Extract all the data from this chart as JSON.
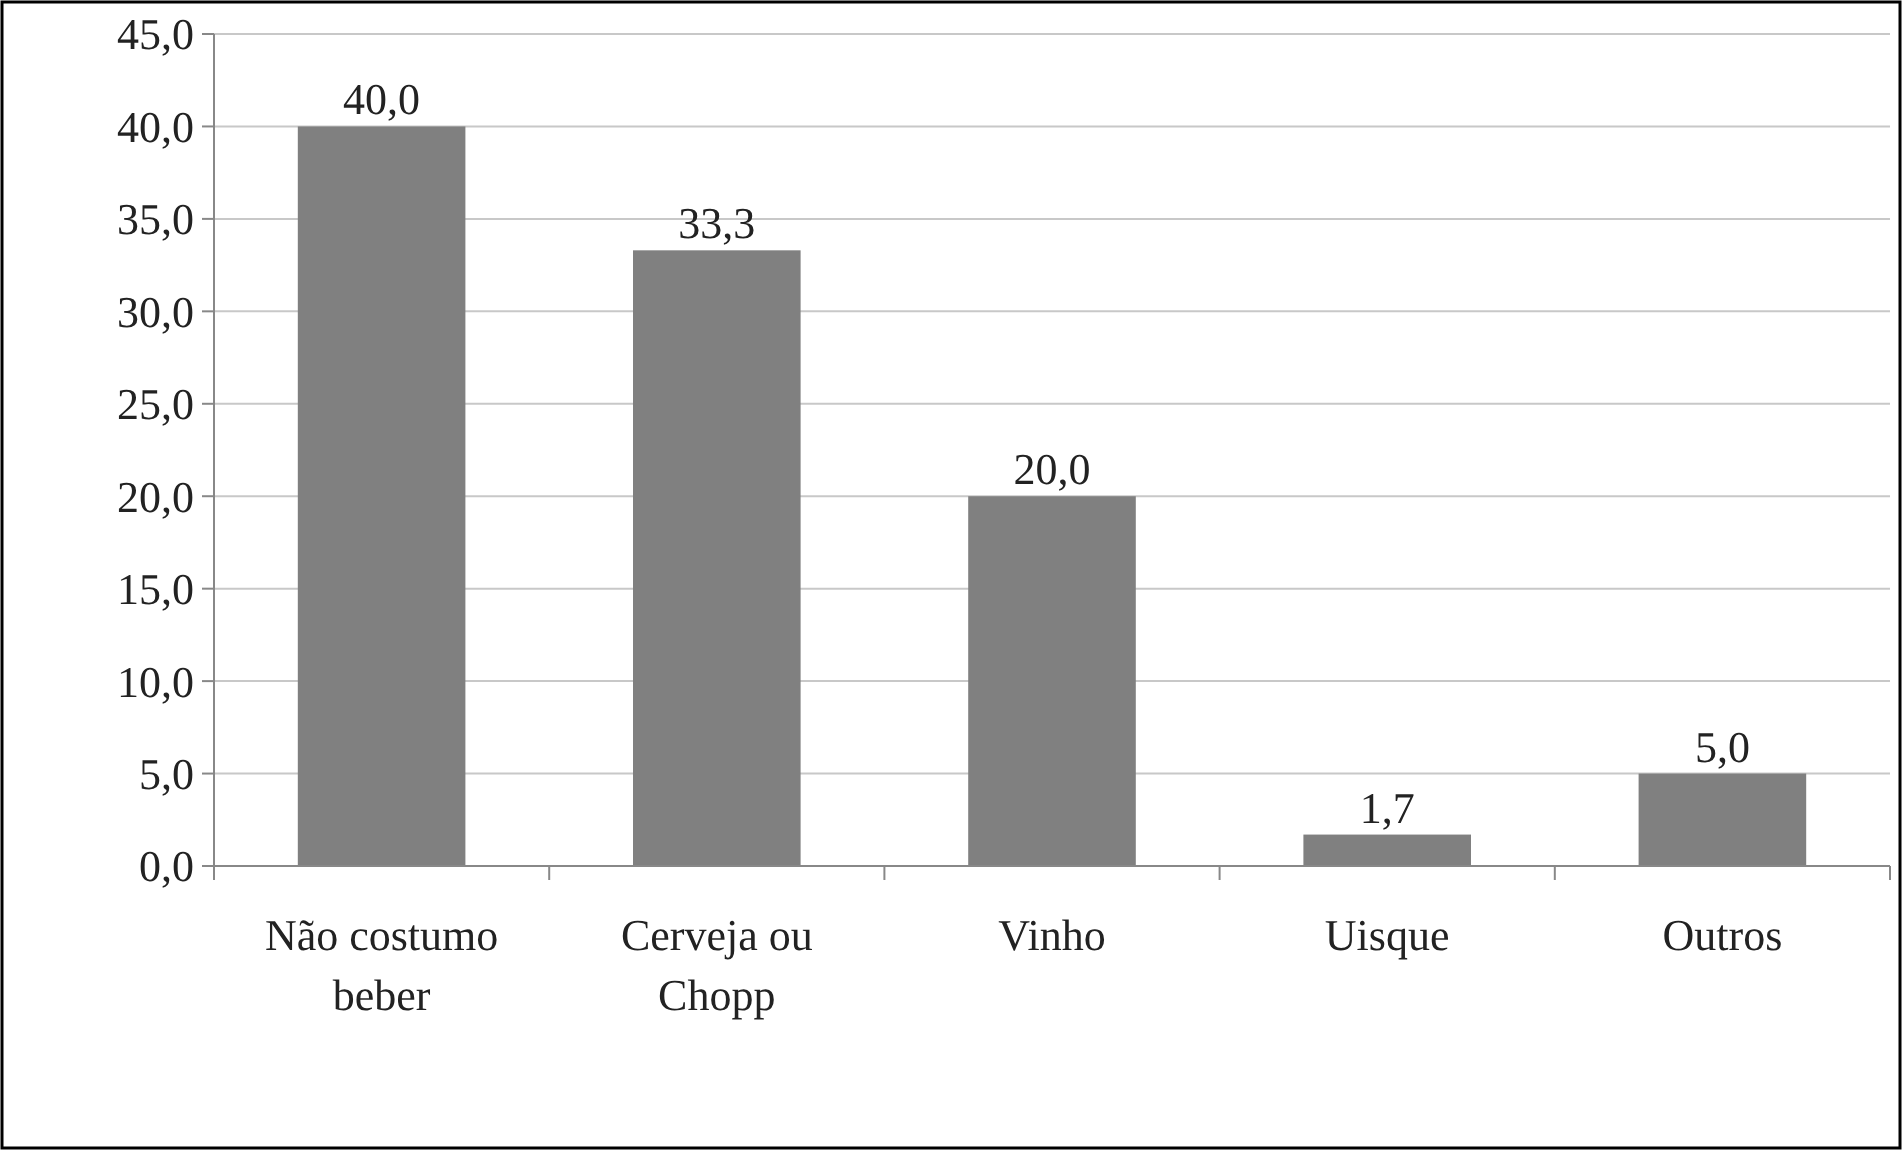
{
  "chart_data": {
    "type": "bar",
    "categories": [
      "Não costumo beber",
      "Cerveja ou Chopp",
      "Vinho",
      "Uisque",
      "Outros"
    ],
    "values": [
      40.0,
      33.3,
      20.0,
      1.7,
      5.0
    ],
    "value_labels": [
      "40,0",
      "33,3",
      "20,0",
      "1,7",
      "5,0"
    ],
    "color": "#808080",
    "ylim": [
      0,
      45
    ],
    "yticks": [
      {
        "value": 0,
        "label": "0,0"
      },
      {
        "value": 5,
        "label": "5,0"
      },
      {
        "value": 10,
        "label": "10,0"
      },
      {
        "value": 15,
        "label": "15,0"
      },
      {
        "value": 20,
        "label": "20,0"
      },
      {
        "value": 25,
        "label": "25,0"
      },
      {
        "value": 30,
        "label": "30,0"
      },
      {
        "value": 35,
        "label": "35,0"
      },
      {
        "value": 40,
        "label": "40,0"
      },
      {
        "value": 45,
        "label": "45,0"
      }
    ],
    "grid": "y"
  }
}
